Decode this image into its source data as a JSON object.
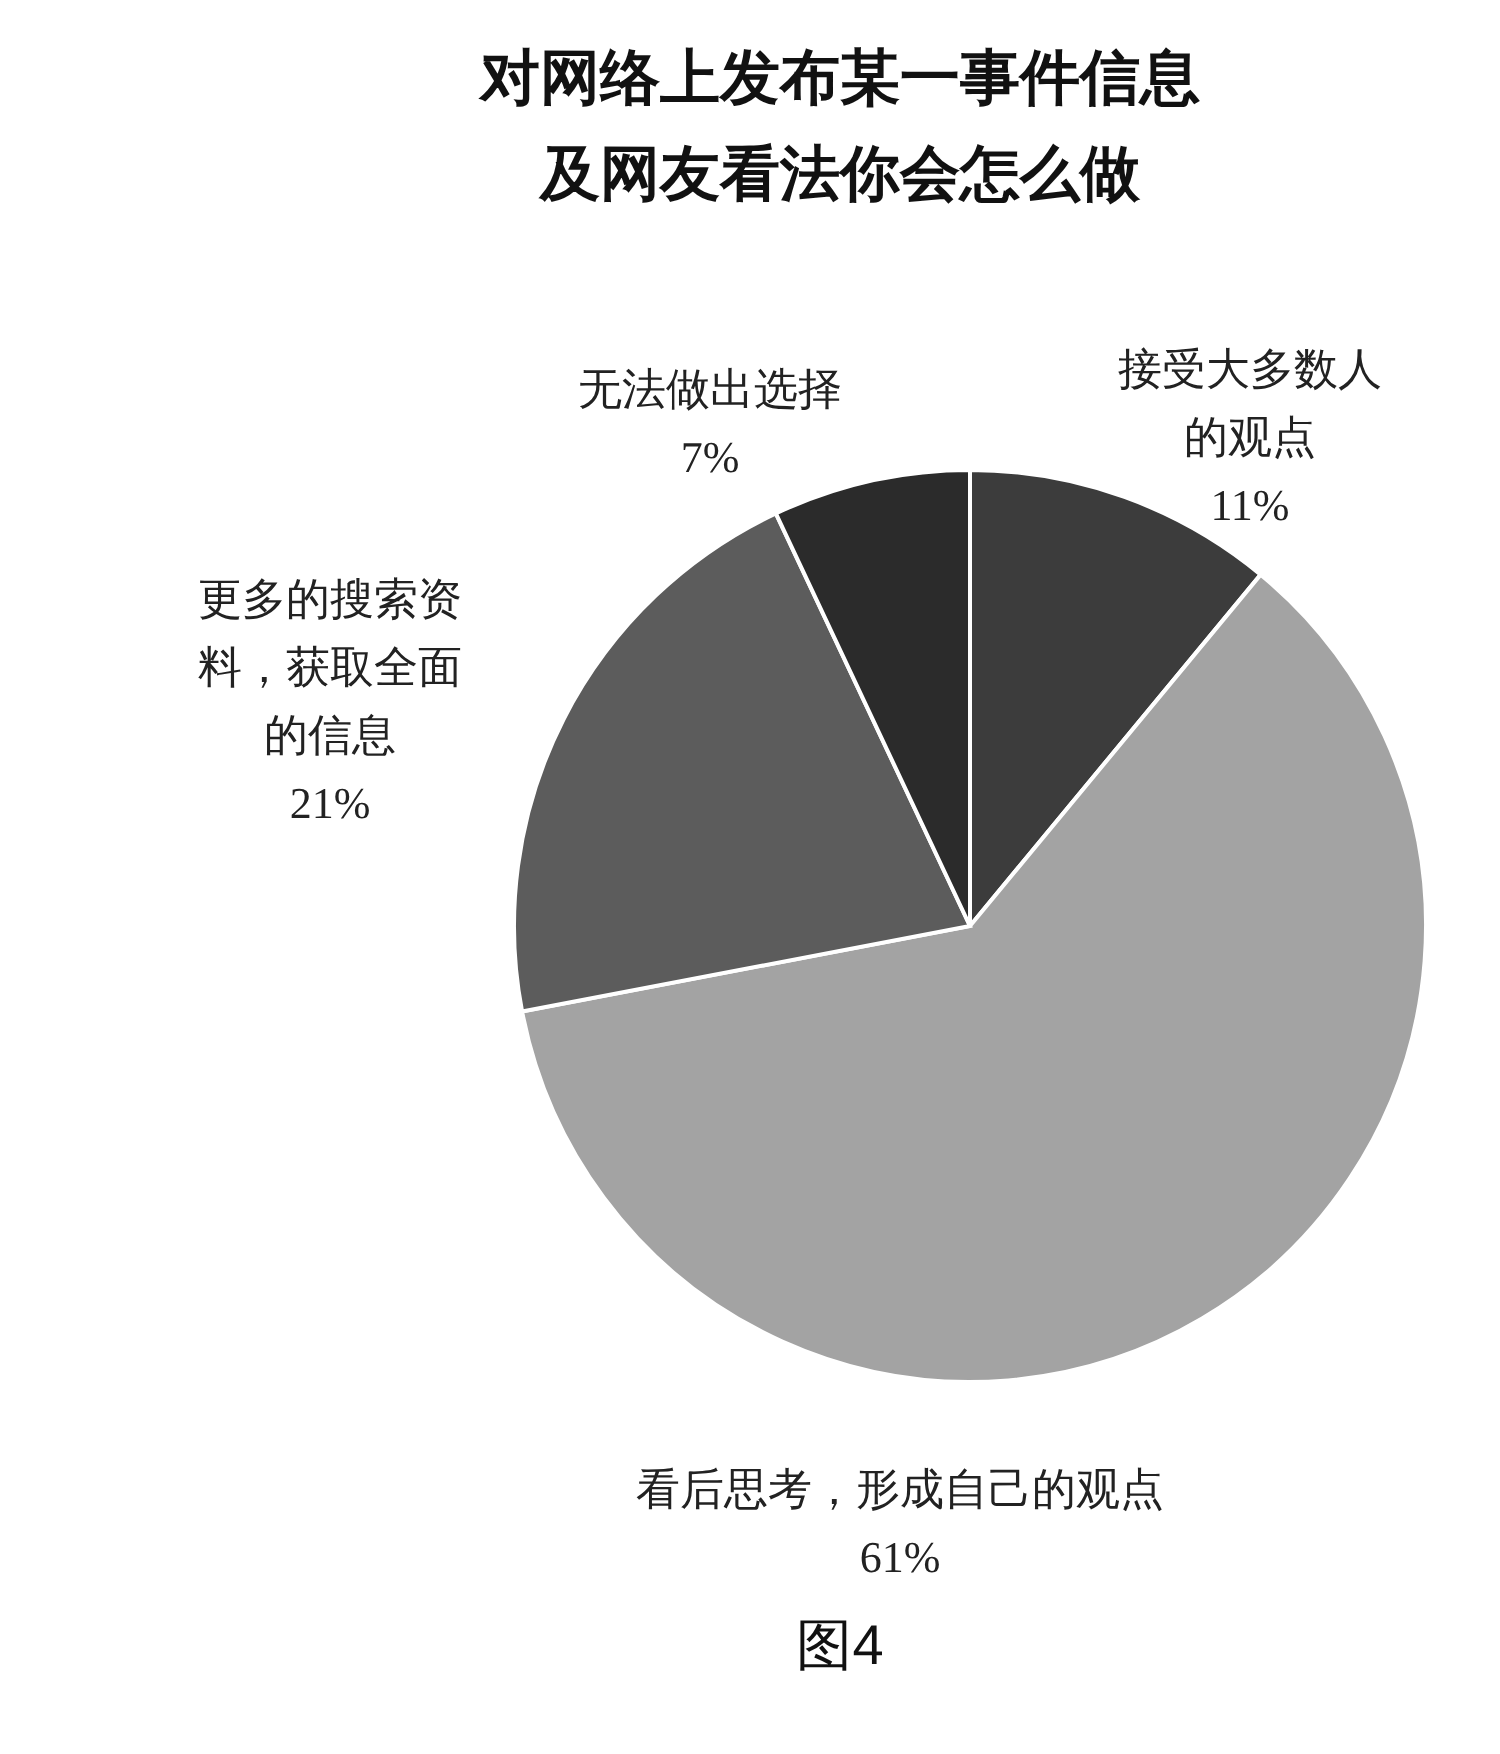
{
  "chart_data": {
    "type": "pie",
    "title": "对网络上发布某一事件信息及网友看法你会怎么做",
    "categories": [
      "接受大多数人的观点",
      "看后思考，形成自己的观点",
      "更多的搜索资料，获取全面的信息",
      "无法做出选择"
    ],
    "values": [
      11,
      61,
      21,
      7
    ],
    "colors": [
      "#3c3c3c",
      "#a3a3a3",
      "#5c5c5c",
      "#2b2b2b"
    ],
    "value_labels": [
      "11%",
      "61%",
      "21%",
      "7%"
    ],
    "annotations": [
      "图4"
    ]
  }
}
